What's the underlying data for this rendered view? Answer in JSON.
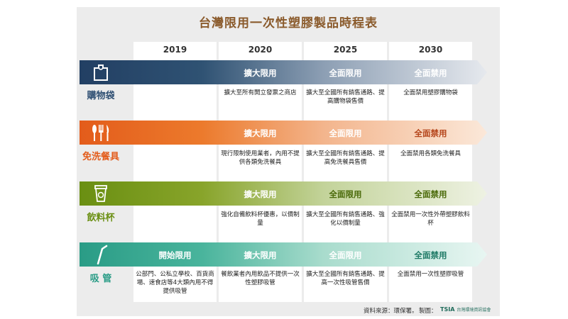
{
  "title": "台灣限用一次性塑膠製品時程表",
  "years": [
    "2019",
    "2020",
    "2025",
    "2030"
  ],
  "rows": [
    {
      "label": "購物袋",
      "color": "#2f4f73",
      "icon": "bag-icon",
      "statuses": [
        "",
        "擴大限用",
        "全面限用",
        "全面禁用"
      ],
      "descs": [
        "",
        "擴大至所有開立發票之商店",
        "擴大至全國所有銷售通路、提高購物袋售價",
        "全面禁用塑膠購物袋"
      ]
    },
    {
      "label": "免洗餐具",
      "color": "#e35c1b",
      "icon": "cutlery-icon",
      "statuses": [
        "",
        "擴大限用",
        "全面限用",
        "全面禁用"
      ],
      "descs": [
        "",
        "現行限制使用業者，內用不提供各類免洗餐具",
        "擴大至全國所有銷售通路、提高免洗餐具售價",
        "全面禁用各類免洗餐具"
      ]
    },
    {
      "label": "飲料杯",
      "color": "#6a8f12",
      "icon": "cup-icon",
      "statuses": [
        "",
        "擴大限用",
        "全面限用",
        "全面禁用"
      ],
      "descs": [
        "",
        "強化自備飲料杯優惠，以價制量",
        "擴大至全國所有銷售通路、強化以價制量",
        "全面禁用一次性外帶塑膠飲料杯"
      ]
    },
    {
      "label": "吸 管",
      "color": "#2a9c86",
      "icon": "straw-icon",
      "statuses": [
        "開始限用",
        "擴大限用",
        "全面限用",
        "全面禁用"
      ],
      "descs": [
        "公部門、公私立學校、百貨商場、速食店等4大類內用不得提供吸管",
        "餐飲業者內用飲品不提供一次性塑膠吸管",
        "擴大至全國所有銷售通路、提高一次性吸管售價",
        "全面禁用一次性塑膠吸管"
      ]
    }
  ],
  "footer": {
    "source": "資料來源：環保署。",
    "made_by": "製圖：",
    "logo_mark": "TSIA",
    "logo_text": "台灣環境資訊協會"
  }
}
